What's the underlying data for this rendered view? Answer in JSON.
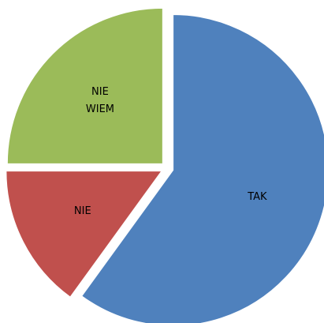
{
  "chart_data": {
    "type": "pie",
    "categories": [
      "TAK",
      "NIE",
      "NIE WIEM"
    ],
    "values": [
      60,
      15,
      25
    ],
    "colors": [
      "#4f81bd",
      "#c0504d",
      "#9bbb59"
    ]
  }
}
